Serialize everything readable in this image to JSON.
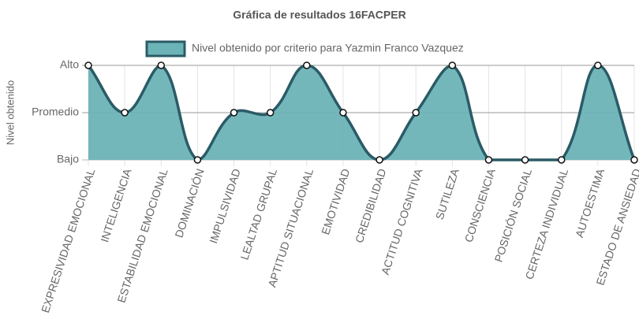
{
  "chart_data": {
    "type": "line",
    "title": "Gráfica de resultados 16FACPER",
    "y_label": "Nivel obtenido",
    "categories": [
      "EXPRESIVIDAD EMOCIONAL",
      "INTELIGENCIA",
      "ESTABILIDAD EMOCIONAL",
      "DOMINACIÓN",
      "IMPULSIVIDAD",
      "LEALTAD GRUPAL",
      "APTITUD SITUACIONAL",
      "EMOTIVIDAD",
      "CREDIBILIDAD",
      "ACTITUD COGNITIVA",
      "SUTILEZA",
      "CONSCIENCIA",
      "POSICIÓN SOCIAL",
      "CERTEZA INDIVIDUAL",
      "AUTOESTIMA",
      "ESTADO DE ANSIEDAD"
    ],
    "series": [
      {
        "name": "Nivel obtenido por criterio para Yazmin Franco Vazquez",
        "color": "#2a5b66",
        "fill": "#6cb3b7",
        "values": [
          3,
          2,
          3,
          1,
          2,
          2,
          3,
          2,
          1,
          2,
          3,
          1,
          1,
          1,
          3,
          1
        ]
      }
    ],
    "ylim": [
      1,
      3
    ],
    "yticks": [
      {
        "value": 1,
        "label": "Bajo"
      },
      {
        "value": 2,
        "label": "Promedio"
      },
      {
        "value": 3,
        "label": "Alto"
      }
    ],
    "grid": true,
    "legend": "top",
    "fill": true
  }
}
